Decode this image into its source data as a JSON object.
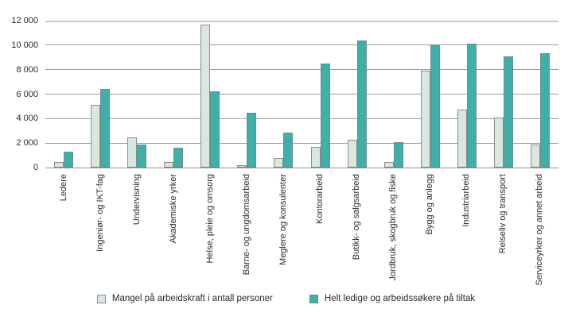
{
  "chart_data": {
    "type": "bar",
    "title": "",
    "categories": [
      "Ledere",
      "Ingeniør- og IKT-fag",
      "Undervisning",
      "Akademiske yrker",
      "Helse, pleie og omsorg",
      "Barne- og ungdomsarbeid",
      "Meglere og konsulenter",
      "Kontorarbeid",
      "Butikk- og salgsarbeid",
      "Jordbruk, skogbruk og fiske",
      "Bygg og anlegg",
      "Industriarbeid",
      "Reiseliv og transport",
      "Serviceyrker og annet arbeid"
    ],
    "series": [
      {
        "name": "Mangel på arbeidskraft i antall personer",
        "color": "#d8e8df",
        "values": [
          450,
          5150,
          2450,
          450,
          11700,
          200,
          800,
          1700,
          2250,
          450,
          7900,
          4750,
          4100,
          1850
        ]
      },
      {
        "name": "Helt ledige og arbeidssøkere på tiltak",
        "color": "#3fafaa",
        "values": [
          1300,
          6450,
          1900,
          1650,
          6200,
          4500,
          2850,
          8500,
          10400,
          2050,
          10050,
          10100,
          9050,
          9350
        ]
      }
    ],
    "xlabel": "",
    "ylabel": "",
    "ylim": [
      0,
      12000
    ],
    "ytick_step": 2000,
    "ytick_labels": [
      "0",
      "2 000",
      "4 000",
      "6 000",
      "8 000",
      "10 000",
      "12 000"
    ],
    "grid": true,
    "legend_position": "bottom"
  }
}
